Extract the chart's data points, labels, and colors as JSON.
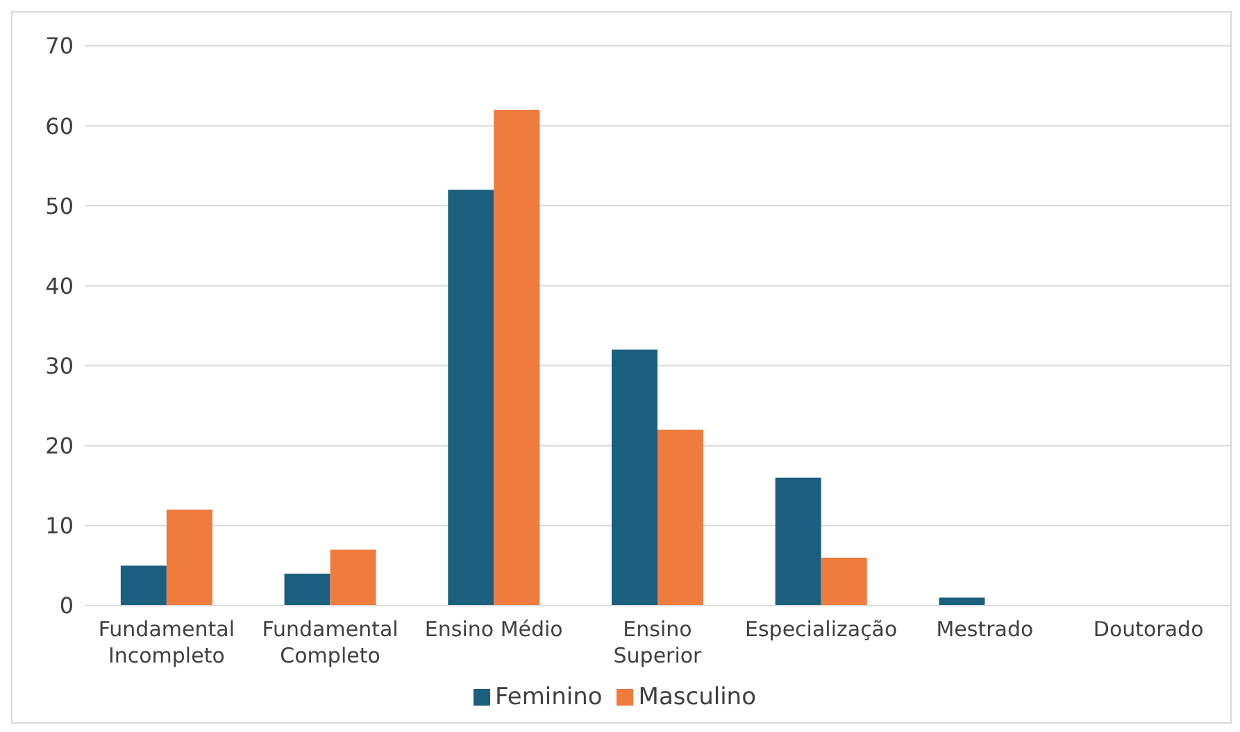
{
  "chart_data": {
    "type": "bar",
    "categories": [
      "Fundamental Incompleto",
      "Fundamental Completo",
      "Ensino Médio",
      "Ensino Superior",
      "Especialização",
      "Mestrado",
      "Doutorado"
    ],
    "series": [
      {
        "name": "Feminino",
        "color": "#1b5e7e",
        "values": [
          5,
          4,
          52,
          32,
          16,
          1,
          0
        ]
      },
      {
        "name": "Masculino",
        "color": "#ef7b3d",
        "values": [
          12,
          7,
          62,
          22,
          6,
          0,
          0
        ]
      }
    ],
    "ylim": [
      0,
      70
    ],
    "yticks": [
      0,
      10,
      20,
      30,
      40,
      50,
      60,
      70
    ],
    "grid": "y",
    "legend": "bottom"
  }
}
